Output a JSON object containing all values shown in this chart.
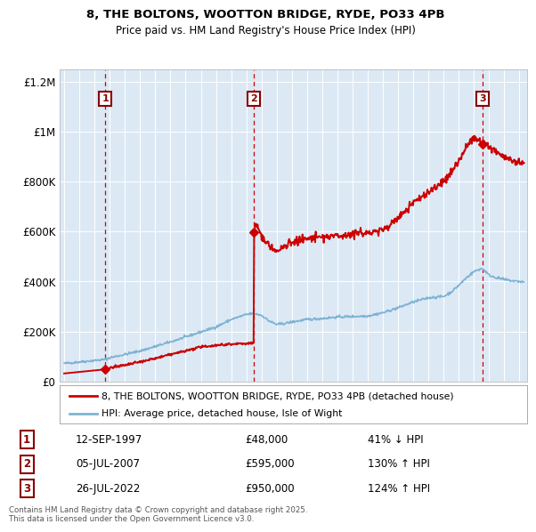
{
  "title1": "8, THE BOLTONS, WOOTTON BRIDGE, RYDE, PO33 4PB",
  "title2": "Price paid vs. HM Land Registry's House Price Index (HPI)",
  "background_color": "#dce9f5",
  "legend_line1": "8, THE BOLTONS, WOOTTON BRIDGE, RYDE, PO33 4PB (detached house)",
  "legend_line2": "HPI: Average price, detached house, Isle of Wight",
  "footer": "Contains HM Land Registry data © Crown copyright and database right 2025.\nThis data is licensed under the Open Government Licence v3.0.",
  "transactions": [
    {
      "num": 1,
      "date": "12-SEP-1997",
      "price": "£48,000",
      "hpi_pct": "41% ↓ HPI",
      "year": 1997.7
    },
    {
      "num": 2,
      "date": "05-JUL-2007",
      "price": "£595,000",
      "hpi_pct": "130% ↑ HPI",
      "year": 2007.5
    },
    {
      "num": 3,
      "date": "26-JUL-2022",
      "price": "£950,000",
      "hpi_pct": "124% ↑ HPI",
      "year": 2022.55
    }
  ],
  "xlim": [
    1994.7,
    2025.5
  ],
  "ylim": [
    0,
    1250000
  ],
  "yticks": [
    0,
    200000,
    400000,
    600000,
    800000,
    1000000,
    1200000
  ],
  "ytick_labels": [
    "£0",
    "£200K",
    "£400K",
    "£600K",
    "£800K",
    "£1M",
    "£1.2M"
  ],
  "red_color": "#cc0000",
  "blue_color": "#7fb3d3",
  "dashed_color": "#cc0000",
  "hpi_anchors_x": [
    1995,
    1996,
    1997,
    1997.7,
    1998,
    1999,
    2000,
    2001,
    2002,
    2003,
    2004,
    2005,
    2006,
    2007,
    2007.5,
    2008,
    2008.5,
    2009,
    2009.5,
    2010,
    2011,
    2012,
    2013,
    2014,
    2015,
    2016,
    2017,
    2018,
    2019,
    2020,
    2020.5,
    2021,
    2021.5,
    2022,
    2022.5,
    2022.7,
    2023,
    2023.5,
    2024,
    2024.5,
    2025,
    2025.3
  ],
  "hpi_anchors_y": [
    72000,
    78000,
    84000,
    88000,
    95000,
    108000,
    122000,
    140000,
    158000,
    178000,
    198000,
    218000,
    248000,
    268000,
    272000,
    265000,
    242000,
    228000,
    232000,
    238000,
    248000,
    252000,
    258000,
    260000,
    262000,
    275000,
    295000,
    318000,
    335000,
    340000,
    358000,
    385000,
    415000,
    440000,
    452000,
    445000,
    425000,
    415000,
    408000,
    403000,
    400000,
    398000
  ],
  "price_anchors_x": [
    1995,
    1996,
    1997.0,
    1997.7,
    1998,
    1999,
    2000,
    2001,
    2002,
    2003,
    2004,
    2005,
    2006,
    2007.0,
    2007.49,
    2007.51,
    2007.6,
    2007.8,
    2008.0,
    2008.5,
    2009.0,
    2009.5,
    2010,
    2011,
    2012,
    2013,
    2014,
    2015,
    2016,
    2017,
    2018,
    2019,
    2020,
    2020.5,
    2021,
    2021.5,
    2022.0,
    2022.55,
    2022.7,
    2022.9,
    2023.0,
    2023.5,
    2024,
    2024.5,
    2025,
    2025.3
  ],
  "price_anchors_y": [
    32000,
    38000,
    44000,
    48000,
    54000,
    65000,
    78000,
    92000,
    108000,
    122000,
    138000,
    145000,
    150000,
    152000,
    153000,
    595000,
    635000,
    610000,
    580000,
    545000,
    520000,
    538000,
    560000,
    570000,
    578000,
    582000,
    592000,
    595000,
    605000,
    655000,
    715000,
    758000,
    798000,
    838000,
    880000,
    938000,
    978000,
    950000,
    955000,
    945000,
    940000,
    920000,
    900000,
    882000,
    870000,
    870000
  ]
}
